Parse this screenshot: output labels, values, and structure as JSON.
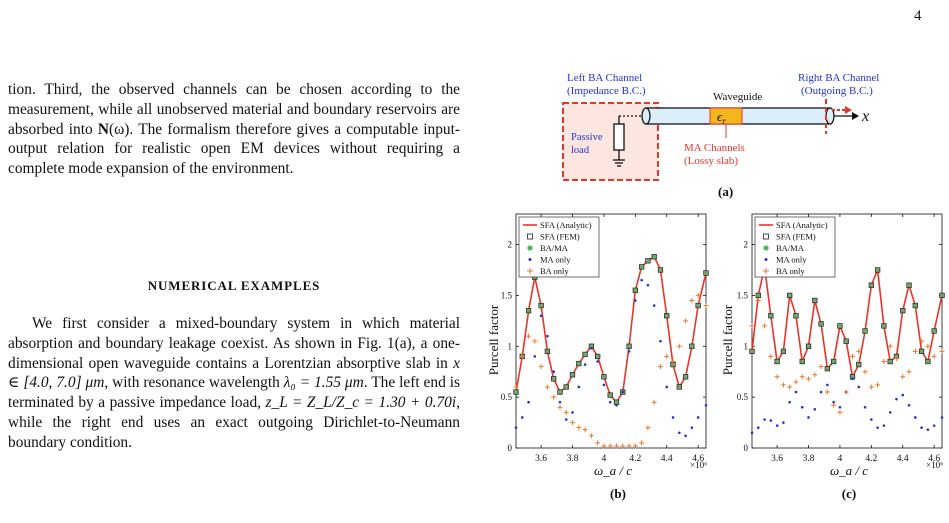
{
  "page_number": "4",
  "paragraph1": {
    "lead": "tion. Third, the observed channels can be chosen according to the measurement, while all unobserved material and boundary reservoirs are absorbed into ",
    "symbol": "N",
    "arg": "(ω)",
    "tail": ". The formalism therefore gives a computable input-output relation for realistic open EM devices without requiring a complete mode expansion of the environment."
  },
  "section_heading": "NUMERICAL EXAMPLES",
  "paragraph2": {
    "s1": "We first consider a mixed-boundary system in which material absorption and boundary leakage coexist. As shown in Fig. 1(a), a one-dimensional open waveguide contains a Lorentzian absorptive slab in ",
    "m1": "x ∈ [4.0, 7.0] μm",
    "s2": ", with resonance wavelength ",
    "m2": "λ₀ = 1.55 μm",
    "s3": ". The left end is terminated by a passive impedance load, ",
    "m3": "z_L = Z_L/Z_c = 1.30 + 0.70i",
    "s4": ", while the right end uses an exact outgoing Dirichlet-to-Neumann boundary condition."
  },
  "figure_a": {
    "left_label_1": "Left BA Channel",
    "left_label_2": "(Impedance B.C.)",
    "waveguide_label": "Waveguide",
    "slab_label": "ϵ",
    "slab_sub": "r",
    "right_label_1": "Right BA Channel",
    "right_label_2": "(Outgoing B.C.)",
    "axis_label": "x",
    "load_label_1": "Passive",
    "load_label_2": "load",
    "ma_label_1": "MA Channels",
    "ma_label_2": "(Lossy slab)",
    "caption": "(a)",
    "colors": {
      "red": "#e8342a",
      "blue": "#2233cc",
      "slab_fill": "#f4b61f",
      "guide_fill": "#dceefa"
    }
  },
  "chart_data": [
    {
      "type": "line",
      "caption": "(b)",
      "xlabel": "ω_a / c",
      "ylabel": "Purcell factor",
      "x_exponent": "×10⁶",
      "xlim": [
        3.44,
        4.65
      ],
      "ylim": [
        0,
        2.3
      ],
      "xticks": [
        3.6,
        3.8,
        4.0,
        4.2,
        4.4,
        4.6
      ],
      "xtick_labels": [
        "3.6",
        "3.8",
        "4",
        "4.2",
        "4.4",
        "4.6"
      ],
      "yticks": [
        0,
        0.5,
        1,
        1.5,
        2
      ],
      "ytick_labels": [
        "0",
        "0.5",
        "1",
        "1.5",
        "2"
      ],
      "legend_position": "top-left",
      "legend": [
        "SFA (Analytic)",
        "SFA (FEM)",
        "BA/MA",
        "MA only",
        "BA only"
      ],
      "series": [
        {
          "name": "SFA (Analytic)",
          "style": "line",
          "color": "#e8342a",
          "x": [
            3.44,
            3.48,
            3.52,
            3.56,
            3.6,
            3.64,
            3.68,
            3.72,
            3.76,
            3.8,
            3.84,
            3.88,
            3.92,
            3.96,
            4.0,
            4.04,
            4.08,
            4.12,
            4.16,
            4.2,
            4.24,
            4.28,
            4.32,
            4.36,
            4.4,
            4.44,
            4.48,
            4.52,
            4.56,
            4.6,
            4.65
          ],
          "y": [
            0.55,
            0.9,
            1.35,
            1.68,
            1.4,
            0.95,
            0.68,
            0.55,
            0.6,
            0.72,
            0.83,
            0.92,
            1.0,
            0.9,
            0.7,
            0.52,
            0.45,
            0.55,
            1.0,
            1.55,
            1.78,
            1.84,
            1.88,
            1.75,
            1.3,
            0.82,
            0.6,
            0.7,
            1.0,
            1.4,
            1.72
          ]
        },
        {
          "name": "SFA (FEM)",
          "style": "square",
          "color": "#222222",
          "x": [
            3.44,
            3.48,
            3.52,
            3.56,
            3.6,
            3.64,
            3.68,
            3.72,
            3.76,
            3.8,
            3.84,
            3.88,
            3.92,
            3.96,
            4.0,
            4.04,
            4.08,
            4.12,
            4.16,
            4.2,
            4.24,
            4.28,
            4.32,
            4.36,
            4.4,
            4.44,
            4.48,
            4.52,
            4.56,
            4.6,
            4.65
          ],
          "y": [
            0.55,
            0.9,
            1.35,
            1.68,
            1.4,
            0.95,
            0.68,
            0.55,
            0.6,
            0.72,
            0.83,
            0.92,
            1.0,
            0.9,
            0.7,
            0.52,
            0.45,
            0.55,
            1.0,
            1.55,
            1.78,
            1.84,
            1.88,
            1.75,
            1.3,
            0.82,
            0.6,
            0.7,
            1.0,
            1.4,
            1.72
          ]
        },
        {
          "name": "MA only",
          "style": "dots",
          "color": "#2233cc",
          "x": [
            3.44,
            3.48,
            3.52,
            3.56,
            3.6,
            3.64,
            3.68,
            3.72,
            3.76,
            3.8,
            3.84,
            3.88,
            3.92,
            3.96,
            4.0,
            4.04,
            4.08,
            4.12,
            4.16,
            4.2,
            4.24,
            4.28,
            4.32,
            4.36,
            4.4,
            4.44,
            4.48,
            4.52,
            4.56,
            4.6,
            4.65
          ],
          "y": [
            0.2,
            0.3,
            0.45,
            0.9,
            1.3,
            1.1,
            0.75,
            0.45,
            0.28,
            0.35,
            0.6,
            0.82,
            0.98,
            0.85,
            0.62,
            0.45,
            0.42,
            0.55,
            0.95,
            1.45,
            1.65,
            1.6,
            1.4,
            1.05,
            0.6,
            0.3,
            0.15,
            0.12,
            0.2,
            0.3,
            0.42
          ]
        },
        {
          "name": "BA only",
          "style": "plus",
          "color": "#e87a2a",
          "x": [
            3.44,
            3.48,
            3.52,
            3.56,
            3.6,
            3.64,
            3.68,
            3.72,
            3.76,
            3.8,
            3.84,
            3.88,
            3.92,
            3.96,
            4.0,
            4.04,
            4.08,
            4.12,
            4.16,
            4.2,
            4.24,
            4.28,
            4.32,
            4.36,
            4.4,
            4.44,
            4.48,
            4.52,
            4.56,
            4.6,
            4.65
          ],
          "y": [
            0.6,
            0.9,
            1.1,
            1.05,
            0.8,
            0.6,
            0.5,
            0.4,
            0.35,
            0.25,
            0.2,
            0.18,
            0.12,
            0.05,
            0.02,
            0.02,
            0.02,
            0.02,
            0.02,
            0.02,
            0.05,
            0.2,
            0.45,
            0.8,
            0.9,
            0.85,
            1.0,
            1.25,
            1.45,
            1.5,
            1.4
          ]
        }
      ]
    },
    {
      "type": "line",
      "caption": "(c)",
      "xlabel": "ω_a / c",
      "ylabel": "Purcell factor",
      "x_exponent": "×10⁶",
      "xlim": [
        3.44,
        4.65
      ],
      "ylim": [
        0,
        2.3
      ],
      "xticks": [
        3.6,
        3.8,
        4.0,
        4.2,
        4.4,
        4.6
      ],
      "xtick_labels": [
        "3.6",
        "3.8",
        "4",
        "4.2",
        "4.4",
        "4.6"
      ],
      "yticks": [
        0,
        0.5,
        1,
        1.5,
        2
      ],
      "ytick_labels": [
        "0",
        "0.5",
        "1",
        "1.5",
        "2"
      ],
      "legend_position": "top-left",
      "legend": [
        "SFA (Analytic)",
        "SFA (FEM)",
        "BA/MA",
        "MA only",
        "BA only"
      ],
      "series": [
        {
          "name": "SFA (Analytic)",
          "style": "line",
          "color": "#e8342a",
          "x": [
            3.44,
            3.48,
            3.52,
            3.56,
            3.6,
            3.64,
            3.68,
            3.72,
            3.76,
            3.8,
            3.84,
            3.88,
            3.92,
            3.96,
            4.0,
            4.04,
            4.08,
            4.12,
            4.16,
            4.2,
            4.24,
            4.28,
            4.32,
            4.36,
            4.4,
            4.44,
            4.48,
            4.52,
            4.56,
            4.6,
            4.65
          ],
          "y": [
            0.95,
            1.5,
            1.78,
            1.3,
            0.85,
            0.95,
            1.5,
            1.3,
            0.85,
            1.0,
            1.45,
            1.22,
            0.78,
            0.85,
            1.2,
            1.05,
            0.7,
            0.82,
            1.15,
            1.6,
            1.75,
            1.2,
            0.85,
            0.9,
            1.35,
            1.6,
            1.4,
            0.95,
            0.85,
            1.15,
            1.5
          ]
        },
        {
          "name": "SFA (FEM)",
          "style": "square",
          "color": "#222222",
          "x": [
            3.44,
            3.48,
            3.52,
            3.56,
            3.6,
            3.64,
            3.68,
            3.72,
            3.76,
            3.8,
            3.84,
            3.88,
            3.92,
            3.96,
            4.0,
            4.04,
            4.08,
            4.12,
            4.16,
            4.2,
            4.24,
            4.28,
            4.32,
            4.36,
            4.4,
            4.44,
            4.48,
            4.52,
            4.56,
            4.6,
            4.65
          ],
          "y": [
            0.95,
            1.5,
            1.78,
            1.3,
            0.85,
            0.95,
            1.5,
            1.3,
            0.85,
            1.0,
            1.45,
            1.22,
            0.78,
            0.85,
            1.2,
            1.05,
            0.7,
            0.82,
            1.15,
            1.6,
            1.75,
            1.2,
            0.85,
            0.9,
            1.35,
            1.6,
            1.4,
            0.95,
            0.85,
            1.15,
            1.5
          ]
        },
        {
          "name": "MA only",
          "style": "dots",
          "color": "#2233cc",
          "x": [
            3.44,
            3.48,
            3.52,
            3.56,
            3.6,
            3.64,
            3.68,
            3.72,
            3.76,
            3.8,
            3.84,
            3.88,
            3.92,
            3.96,
            4.0,
            4.04,
            4.08,
            4.12,
            4.16,
            4.2,
            4.24,
            4.28,
            4.32,
            4.36,
            4.4,
            4.44,
            4.48,
            4.52,
            4.56,
            4.6,
            4.65
          ],
          "y": [
            0.15,
            0.2,
            0.28,
            0.27,
            0.22,
            0.25,
            0.45,
            0.55,
            0.4,
            0.3,
            0.38,
            0.55,
            0.62,
            0.45,
            0.4,
            0.55,
            0.68,
            0.6,
            0.4,
            0.28,
            0.2,
            0.22,
            0.35,
            0.48,
            0.52,
            0.42,
            0.3,
            0.2,
            0.18,
            0.22,
            0.3
          ]
        },
        {
          "name": "BA only",
          "style": "plus",
          "color": "#e87a2a",
          "x": [
            3.44,
            3.48,
            3.52,
            3.56,
            3.6,
            3.64,
            3.68,
            3.72,
            3.76,
            3.8,
            3.84,
            3.88,
            3.92,
            3.96,
            4.0,
            4.04,
            4.08,
            4.12,
            4.16,
            4.2,
            4.24,
            4.28,
            4.32,
            4.36,
            4.4,
            4.44,
            4.48,
            4.52,
            4.56,
            4.6,
            4.65
          ],
          "y": [
            1.2,
            1.45,
            1.2,
            0.9,
            0.7,
            0.62,
            0.6,
            0.65,
            0.7,
            0.68,
            0.72,
            0.8,
            0.55,
            0.42,
            0.35,
            0.55,
            0.9,
            0.95,
            0.75,
            0.6,
            0.62,
            0.85,
            1.0,
            0.88,
            0.7,
            0.75,
            0.95,
            1.05,
            1.0,
            0.9,
            0.95
          ]
        }
      ]
    }
  ]
}
